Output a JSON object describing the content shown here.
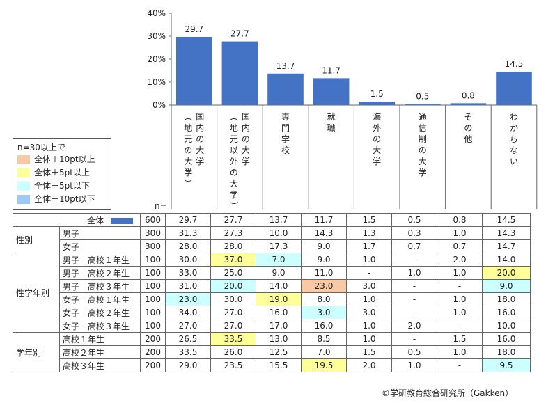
{
  "chart_data": {
    "type": "bar",
    "categories": [
      "国内の大学（地元の大学）",
      "国内の大学（地元以外の大学）",
      "専門学校",
      "就職",
      "海外の大学",
      "通信制の大学",
      "その他",
      "わからない"
    ],
    "category_lines": [
      [
        "国内の大学",
        "（地元の大学）"
      ],
      [
        "国内の大学",
        "（地元以外の大学）"
      ],
      [
        "専門学校"
      ],
      [
        "就職"
      ],
      [
        "海外の大学"
      ],
      [
        "通信制の大学"
      ],
      [
        "その他"
      ],
      [
        "わからない"
      ]
    ],
    "values": [
      29.7,
      27.7,
      13.7,
      11.7,
      1.5,
      0.5,
      0.8,
      14.5
    ],
    "value_labels": [
      "29.7",
      "27.7",
      "13.7",
      "11.7",
      "1.5",
      "0.5",
      "0.8",
      "14.5"
    ],
    "ylim": [
      0,
      40
    ],
    "yticks": [
      "0%",
      "10%",
      "20%",
      "30%",
      "40%"
    ],
    "bar_color": "#4472c4"
  },
  "legend": {
    "title": "n=30以上で",
    "items": [
      {
        "label": "全体＋10pt以上",
        "color": "#f8c9a6"
      },
      {
        "label": "全体＋5pt以上",
        "color": "#ffff99"
      },
      {
        "label": "全体－5pt以下",
        "color": "#ccffff"
      },
      {
        "label": "全体－10pt以下",
        "color": "#9cc9f5"
      }
    ]
  },
  "table": {
    "n_header": "n=",
    "total": {
      "label": "全体",
      "n": "600",
      "values": [
        "29.7",
        "27.7",
        "13.7",
        "11.7",
        "1.5",
        "0.5",
        "0.8",
        "14.5"
      ]
    },
    "groups": [
      {
        "name": "性別",
        "rows": [
          {
            "label": "男子",
            "n": "300",
            "values": [
              "31.3",
              "27.3",
              "10.0",
              "14.3",
              "1.3",
              "0.3",
              "1.0",
              "14.3"
            ],
            "hl": [
              "",
              "",
              "",
              "",
              "",
              "",
              "",
              ""
            ]
          },
          {
            "label": "女子",
            "n": "300",
            "values": [
              "28.0",
              "28.0",
              "17.3",
              "9.0",
              "1.7",
              "0.7",
              "0.7",
              "14.7"
            ],
            "hl": [
              "",
              "",
              "",
              "",
              "",
              "",
              "",
              ""
            ]
          }
        ]
      },
      {
        "name": "性学年別",
        "rows": [
          {
            "label": "男子　高校１年生",
            "n": "100",
            "values": [
              "30.0",
              "37.0",
              "7.0",
              "9.0",
              "1.0",
              "-",
              "2.0",
              "14.0"
            ],
            "hl": [
              "",
              "y",
              "c",
              "",
              "",
              "",
              "",
              ""
            ]
          },
          {
            "label": "男子　高校２年生",
            "n": "100",
            "values": [
              "33.0",
              "25.0",
              "9.0",
              "11.0",
              "-",
              "1.0",
              "1.0",
              "20.0"
            ],
            "hl": [
              "",
              "",
              "",
              "",
              "",
              "",
              "",
              "y"
            ]
          },
          {
            "label": "男子　高校３年生",
            "n": "100",
            "values": [
              "31.0",
              "20.0",
              "14.0",
              "23.0",
              "3.0",
              "-",
              "-",
              "9.0"
            ],
            "hl": [
              "",
              "c",
              "",
              "o",
              "",
              "",
              "",
              "c"
            ]
          },
          {
            "label": "女子　高校１年生",
            "n": "100",
            "values": [
              "23.0",
              "30.0",
              "19.0",
              "8.0",
              "1.0",
              "-",
              "1.0",
              "18.0"
            ],
            "hl": [
              "c",
              "",
              "y",
              "",
              "",
              "",
              "",
              ""
            ]
          },
          {
            "label": "女子　高校２年生",
            "n": "100",
            "values": [
              "34.0",
              "27.0",
              "16.0",
              "3.0",
              "3.0",
              "-",
              "1.0",
              "16.0"
            ],
            "hl": [
              "",
              "",
              "",
              "c",
              "",
              "",
              "",
              ""
            ]
          },
          {
            "label": "女子　高校３年生",
            "n": "100",
            "values": [
              "27.0",
              "27.0",
              "17.0",
              "16.0",
              "1.0",
              "2.0",
              "-",
              "10.0"
            ],
            "hl": [
              "",
              "",
              "",
              "",
              "",
              "",
              "",
              ""
            ]
          }
        ]
      },
      {
        "name": "学年別",
        "rows": [
          {
            "label": "高校１年生",
            "n": "200",
            "values": [
              "26.5",
              "33.5",
              "13.0",
              "8.5",
              "1.0",
              "-",
              "1.5",
              "16.0"
            ],
            "hl": [
              "",
              "y",
              "",
              "",
              "",
              "",
              "",
              ""
            ]
          },
          {
            "label": "高校２年生",
            "n": "200",
            "values": [
              "33.5",
              "26.0",
              "12.5",
              "7.0",
              "1.5",
              "0.5",
              "1.0",
              "18.0"
            ],
            "hl": [
              "",
              "",
              "",
              "",
              "",
              "",
              "",
              ""
            ]
          },
          {
            "label": "高校３年生",
            "n": "200",
            "values": [
              "29.0",
              "23.5",
              "15.5",
              "19.5",
              "2.0",
              "1.0",
              "-",
              "9.5"
            ],
            "hl": [
              "",
              "",
              "",
              "y",
              "",
              "",
              "",
              "c"
            ]
          }
        ]
      }
    ]
  },
  "copyright": "©学研教育総合研究所（Gakken）"
}
